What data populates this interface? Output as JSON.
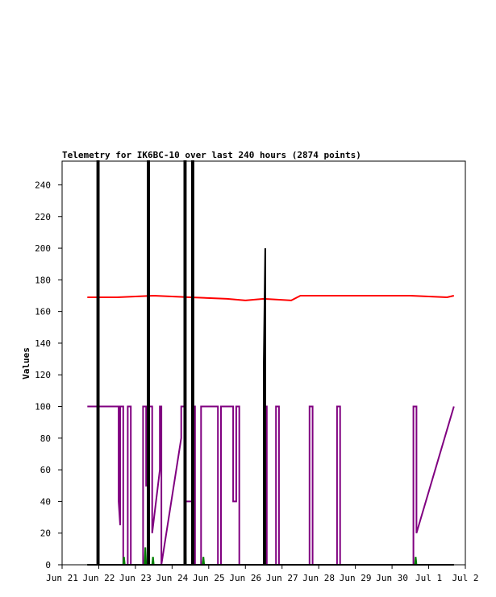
{
  "chart_data": {
    "type": "line",
    "title": "Telemetry for IK6BC-10 over last 240 hours (2874 points)",
    "ylabel": "Values",
    "xlabel": "",
    "ylim": [
      0,
      255
    ],
    "x_unit": "days",
    "xlim": [
      "2023-06-21",
      "2023-07-02"
    ],
    "x_ticks": [
      "Jun 21",
      "Jun 22",
      "Jun 23",
      "Jun 24",
      "Jun 25",
      "Jun 26",
      "Jun 27",
      "Jun 28",
      "Jun 29",
      "Jun 30",
      "Jul 1",
      "Jul 2"
    ],
    "y_ticks": [
      0,
      20,
      40,
      60,
      80,
      100,
      120,
      140,
      160,
      180,
      200,
      220,
      240
    ],
    "grid": false,
    "legend": "none",
    "series": [
      {
        "color": "#ff0000",
        "x": [
          "2023-06-21T16:30",
          "2023-06-22T12:00",
          "2023-06-23T12:00",
          "2023-06-24T12:00",
          "2023-06-25T12:00",
          "2023-06-26T00:00",
          "2023-06-26T12:00",
          "2023-06-27T06:00",
          "2023-06-27T12:00",
          "2023-06-28T12:00",
          "2023-06-29T12:00",
          "2023-06-30T12:00",
          "2023-07-01T12:00",
          "2023-07-01T16:30"
        ],
        "y": [
          169,
          169,
          170,
          169,
          168,
          167,
          168,
          167,
          170,
          170,
          170,
          170,
          169,
          170
        ]
      },
      {
        "color": "#800080",
        "x": [
          "2023-06-21T16:30",
          "2023-06-22T13:00",
          "2023-06-22T13:00",
          "2023-06-22T14:00",
          "2023-06-22T14:00",
          "2023-06-22T16:00",
          "2023-06-22T16:00",
          "2023-06-22T19:00",
          "2023-06-22T19:00",
          "2023-06-22T21:00",
          "2023-06-22T21:00",
          "2023-06-23T05:00",
          "2023-06-23T05:00",
          "2023-06-23T07:00",
          "2023-06-23T07:00",
          "2023-06-23T08:30",
          "2023-06-23T08:30",
          "2023-06-23T11:00",
          "2023-06-23T11:00",
          "2023-06-23T16:00",
          "2023-06-23T16:00",
          "2023-06-23T17:00",
          "2023-06-23T17:00",
          "2023-06-24T06:00",
          "2023-06-24T06:00",
          "2023-06-24T08:00",
          "2023-06-24T08:00",
          "2023-06-24T13:00",
          "2023-06-24T13:00",
          "2023-06-24T15:00",
          "2023-06-24T15:00",
          "2023-06-24T19:00",
          "2023-06-24T19:00",
          "2023-06-25T06:00",
          "2023-06-25T06:00",
          "2023-06-25T08:00",
          "2023-06-25T08:00",
          "2023-06-25T16:00",
          "2023-06-25T16:00",
          "2023-06-25T18:00",
          "2023-06-25T18:00",
          "2023-06-25T20:00",
          "2023-06-25T20:00",
          "2023-06-26T12:00",
          "2023-06-26T12:00",
          "2023-06-26T14:00",
          "2023-06-26T14:00",
          "2023-06-26T20:00",
          "2023-06-26T20:00",
          "2023-06-26T22:00",
          "2023-06-26T22:00",
          "2023-06-27T18:00",
          "2023-06-27T18:00",
          "2023-06-27T20:00",
          "2023-06-27T20:00",
          "2023-06-28T12:00",
          "2023-06-28T12:00",
          "2023-06-28T14:00",
          "2023-06-28T14:00",
          "2023-06-30T14:00",
          "2023-06-30T14:00",
          "2023-06-30T16:00",
          "2023-06-30T16:00",
          "2023-07-01T16:30"
        ],
        "y": [
          100,
          100,
          40,
          25,
          100,
          100,
          0,
          0,
          100,
          100,
          0,
          0,
          100,
          100,
          50,
          50,
          100,
          100,
          20,
          60,
          100,
          100,
          0,
          80,
          100,
          100,
          40,
          40,
          100,
          100,
          0,
          0,
          100,
          100,
          0,
          0,
          100,
          100,
          40,
          40,
          100,
          100,
          0,
          0,
          100,
          100,
          0,
          0,
          100,
          100,
          0,
          0,
          100,
          100,
          0,
          0,
          100,
          100,
          0,
          0,
          100,
          100,
          20,
          100
        ]
      },
      {
        "color": "#008000",
        "x": [
          "2023-06-21T16:30",
          "2023-06-22T16:00",
          "2023-06-22T16:30",
          "2023-06-22T17:00",
          "2023-06-23T06:00",
          "2023-06-23T06:30",
          "2023-06-23T07:00",
          "2023-06-23T11:00",
          "2023-06-23T11:30",
          "2023-06-23T12:00",
          "2023-06-24T08:00",
          "2023-06-24T08:30",
          "2023-06-24T09:00",
          "2023-06-24T20:00",
          "2023-06-24T20:30",
          "2023-06-24T21:00",
          "2023-06-30T15:00",
          "2023-06-30T15:30",
          "2023-06-30T16:00",
          "2023-07-01T16:30"
        ],
        "y": [
          0,
          0,
          5,
          0,
          0,
          11,
          0,
          0,
          5,
          0,
          0,
          14,
          0,
          0,
          5,
          0,
          0,
          5,
          0,
          0
        ]
      },
      {
        "color": "#000000",
        "x": [
          "2023-06-21T16:30",
          "2023-06-21T23:00",
          "2023-06-21T23:00",
          "2023-06-22T00:00",
          "2023-06-22T00:00",
          "2023-06-23T08:00",
          "2023-06-23T08:00",
          "2023-06-23T09:00",
          "2023-06-23T09:00",
          "2023-06-24T08:00",
          "2023-06-24T08:00",
          "2023-06-24T09:00",
          "2023-06-24T09:00",
          "2023-06-24T13:00",
          "2023-06-24T13:00",
          "2023-06-24T14:00",
          "2023-06-24T14:00",
          "2023-06-26T12:00",
          "2023-06-26T12:00",
          "2023-06-26T13:00",
          "2023-06-26T13:00",
          "2023-07-01T16:30"
        ],
        "y": [
          0,
          0,
          255,
          255,
          0,
          0,
          255,
          255,
          0,
          0,
          255,
          255,
          0,
          0,
          255,
          255,
          0,
          0,
          125,
          200,
          0,
          0
        ]
      }
    ]
  }
}
